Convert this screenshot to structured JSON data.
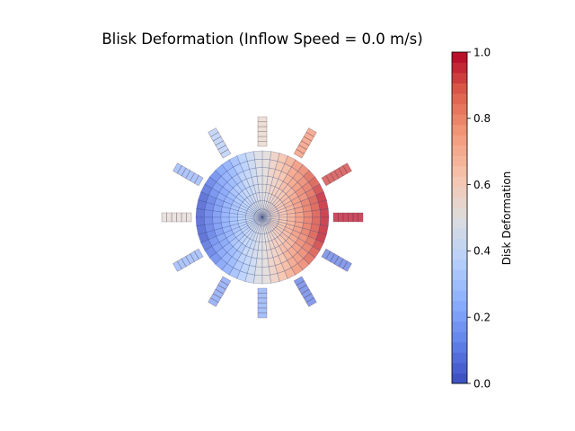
{
  "chart_data": {
    "type": "heatmap",
    "title": "Blisk Deformation (Inflow Speed = 0.0 m/s)",
    "colorbar": {
      "label": "Disk Deformation",
      "colormap": "coolwarm",
      "range": [
        0.0,
        1.0
      ],
      "ticks": [
        0.0,
        0.2,
        0.4,
        0.6,
        0.8,
        1.0
      ],
      "tick_labels": [
        "0.0",
        "0.2",
        "0.4",
        "0.6",
        "0.8",
        "1.0"
      ],
      "levels": 32
    },
    "disk": {
      "radial_cells": 8,
      "angular_cells": 48,
      "field_description": "deformation = 0.5 + 0.5*cos(theta)*r"
    },
    "blades": {
      "count": 12,
      "cells_per_blade": 6,
      "angles_deg": [
        0,
        30,
        60,
        90,
        120,
        150,
        180,
        210,
        240,
        270,
        300,
        330
      ],
      "values": [
        0.98,
        0.93,
        0.78,
        0.55,
        0.35,
        0.27,
        0.5,
        0.27,
        0.2,
        0.22,
        0.1,
        0.1
      ]
    },
    "axes_visible": false,
    "grid": false
  }
}
